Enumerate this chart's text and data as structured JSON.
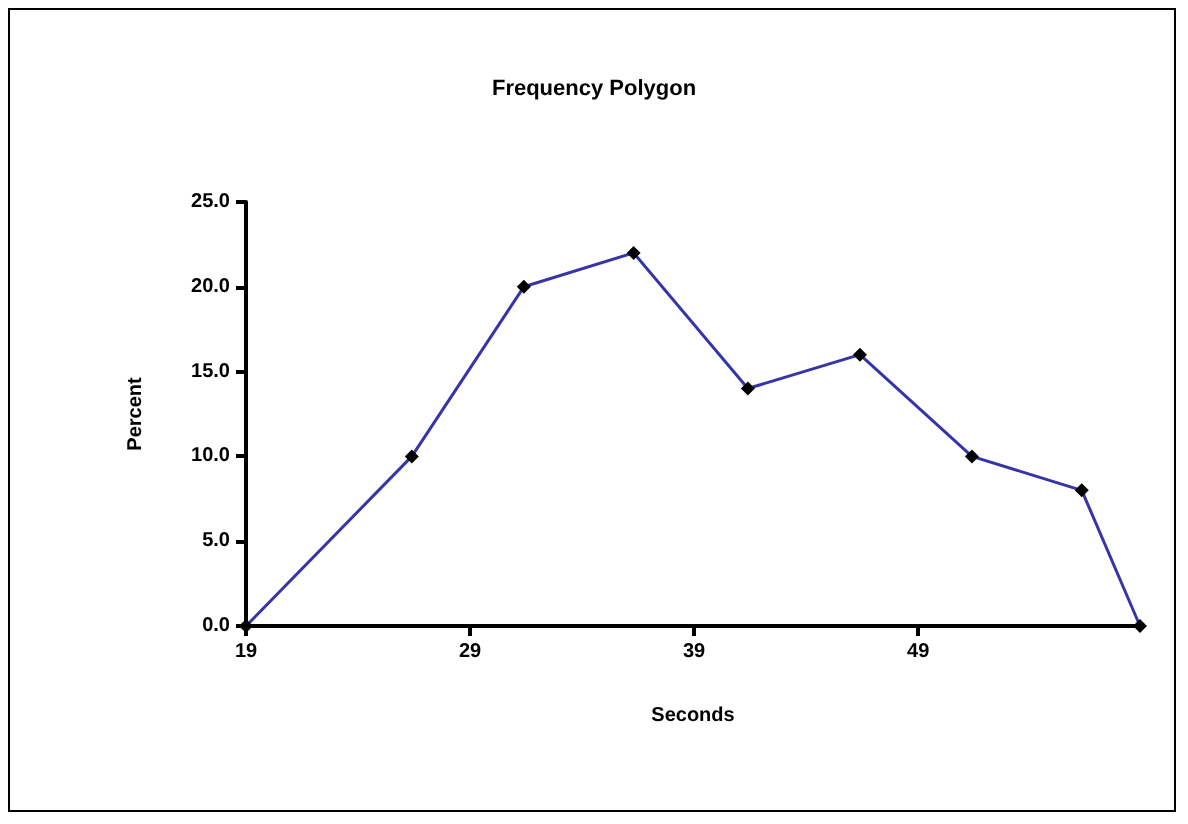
{
  "chart_data": {
    "type": "line",
    "title": "Frequency Polygon",
    "xlabel": "Seconds",
    "ylabel": "Percent",
    "x": [
      19,
      26.4,
      31.4,
      36.3,
      41.4,
      46.4,
      51.4,
      56.3,
      58.9
    ],
    "series": [
      {
        "color": "#3535a8",
        "values": [
          0,
          10,
          20,
          22,
          14,
          16,
          10,
          8,
          0
        ]
      }
    ],
    "xlim": [
      19,
      58.9
    ],
    "xticks": [
      19,
      29,
      39,
      49
    ],
    "ylim": [
      0,
      25
    ],
    "yticks": [
      {
        "value": 0,
        "label": "0.0"
      },
      {
        "value": 5,
        "label": "5.0"
      },
      {
        "value": 10,
        "label": "10.0"
      },
      {
        "value": 15,
        "label": "15.0"
      },
      {
        "value": 20,
        "label": "20.0"
      },
      {
        "value": 25,
        "label": "25.0"
      }
    ],
    "marker": "diamond",
    "grid": false
  }
}
